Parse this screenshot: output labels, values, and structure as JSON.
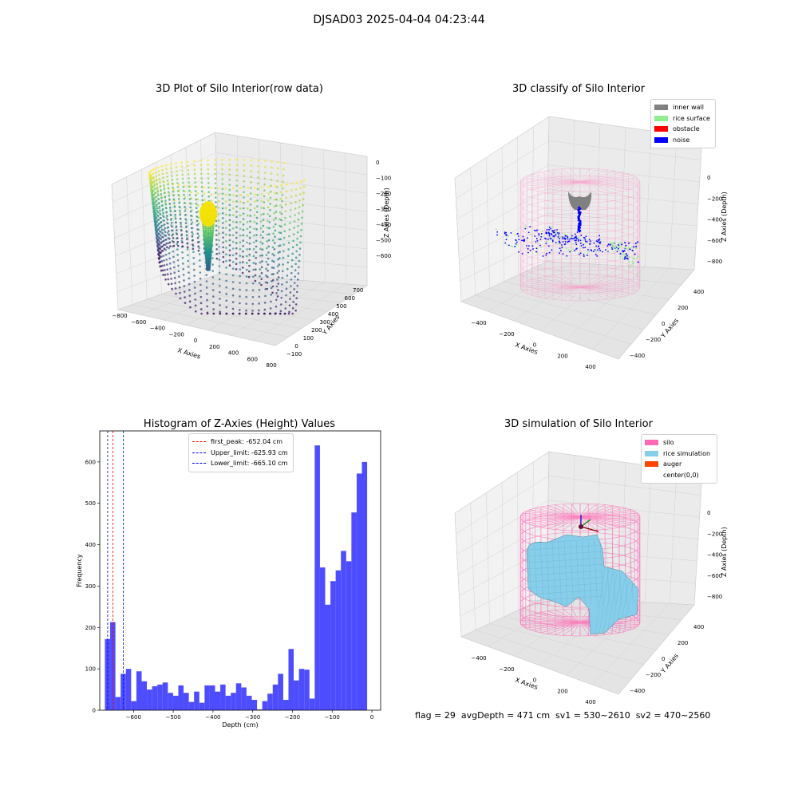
{
  "suptitle": "DJSAD03 2025-04-04 04:23:44",
  "panels": {
    "raw": {
      "title": "3D Plot of Silo Interior(row data)",
      "xlabel": "X Axies",
      "ylabel": "Y Axies",
      "zlabel": "Z Axies (Depth)",
      "xticks": [
        "−800",
        "−600",
        "−400",
        "−200",
        "0",
        "200",
        "400",
        "600",
        "800"
      ],
      "yticks": [
        "−100",
        "0",
        "100",
        "200",
        "300",
        "400",
        "500",
        "600",
        "700"
      ],
      "zticks": [
        "0",
        "−100",
        "−200",
        "−300",
        "−400",
        "−500",
        "−600"
      ]
    },
    "classify": {
      "title": "3D classify of Silo Interior",
      "xlabel": "X Axies",
      "ylabel": "Y Axies",
      "zlabel": "Z Axies (Depth)",
      "xticks": [
        "−400",
        "−200",
        "0",
        "200",
        "400"
      ],
      "yticks": [
        "−400",
        "−200",
        "0",
        "200",
        "400"
      ],
      "zticks": [
        "0",
        "−200",
        "−400",
        "−600",
        "−800"
      ],
      "legend": [
        {
          "label": "inner wall",
          "color": "#808080"
        },
        {
          "label": "rice surface",
          "color": "#90ee90"
        },
        {
          "label": "obstacle",
          "color": "#ff0000"
        },
        {
          "label": "noise",
          "color": "#0000ff"
        }
      ]
    },
    "simulation": {
      "title": "3D simulation of Silo Interior",
      "xlabel": "X Axies",
      "ylabel": "Y Axies",
      "zlabel": "Z Axies (Depth)",
      "xticks": [
        "−400",
        "−200",
        "0",
        "200",
        "400"
      ],
      "yticks": [
        "−400",
        "−200",
        "0",
        "200",
        "400"
      ],
      "zticks": [
        "0",
        "−200",
        "−400",
        "−600",
        "−800"
      ],
      "legend": [
        {
          "label": "silo",
          "color": "#ff69b4"
        },
        {
          "label": "rice simulation",
          "color": "#87ceeb"
        },
        {
          "label": "auger",
          "color": "#ff4500"
        },
        {
          "label": "center(0,0)",
          "color": "#ffffff"
        }
      ]
    }
  },
  "chart_data": {
    "type": "bar",
    "title": "Histogram of Z-Axies (Height) Values",
    "xlabel": "Depth (cm)",
    "ylabel": "Frequency",
    "xlim": [
      -685,
      22
    ],
    "ylim": [
      0,
      675
    ],
    "xticks": [
      -600,
      -500,
      -400,
      -300,
      -200,
      -100,
      0
    ],
    "xtick_labels": [
      "−600",
      "−500",
      "−400",
      "−300",
      "−200",
      "−100",
      "0"
    ],
    "yticks": [
      0,
      100,
      200,
      300,
      400,
      500,
      600
    ],
    "bar_color": "#4d4dff",
    "bin_start": -672,
    "bin_width": 13.2,
    "values": [
      172,
      213,
      32,
      88,
      100,
      22,
      94,
      70,
      50,
      58,
      62,
      67,
      42,
      35,
      60,
      42,
      20,
      45,
      18,
      60,
      60,
      45,
      62,
      35,
      42,
      65,
      55,
      35,
      25,
      2,
      22,
      40,
      62,
      88,
      25,
      148,
      72,
      100,
      98,
      28,
      640,
      345,
      255,
      312,
      338,
      385,
      360,
      478,
      572,
      600
    ],
    "vlines": [
      {
        "label": "first_peak: -652.04 cm",
        "x": -652.04,
        "color": "#ff0000"
      },
      {
        "label": "Upper_limit: -625.93 cm",
        "x": -625.93,
        "color": "#0000ff"
      },
      {
        "label": "Lower_limit: -665.10 cm",
        "x": -665.1,
        "color": "#0000ff"
      }
    ]
  },
  "footer": "flag = 29  avgDepth = 471 cm  sv1 = 530~2610  sv2 = 470~2560"
}
